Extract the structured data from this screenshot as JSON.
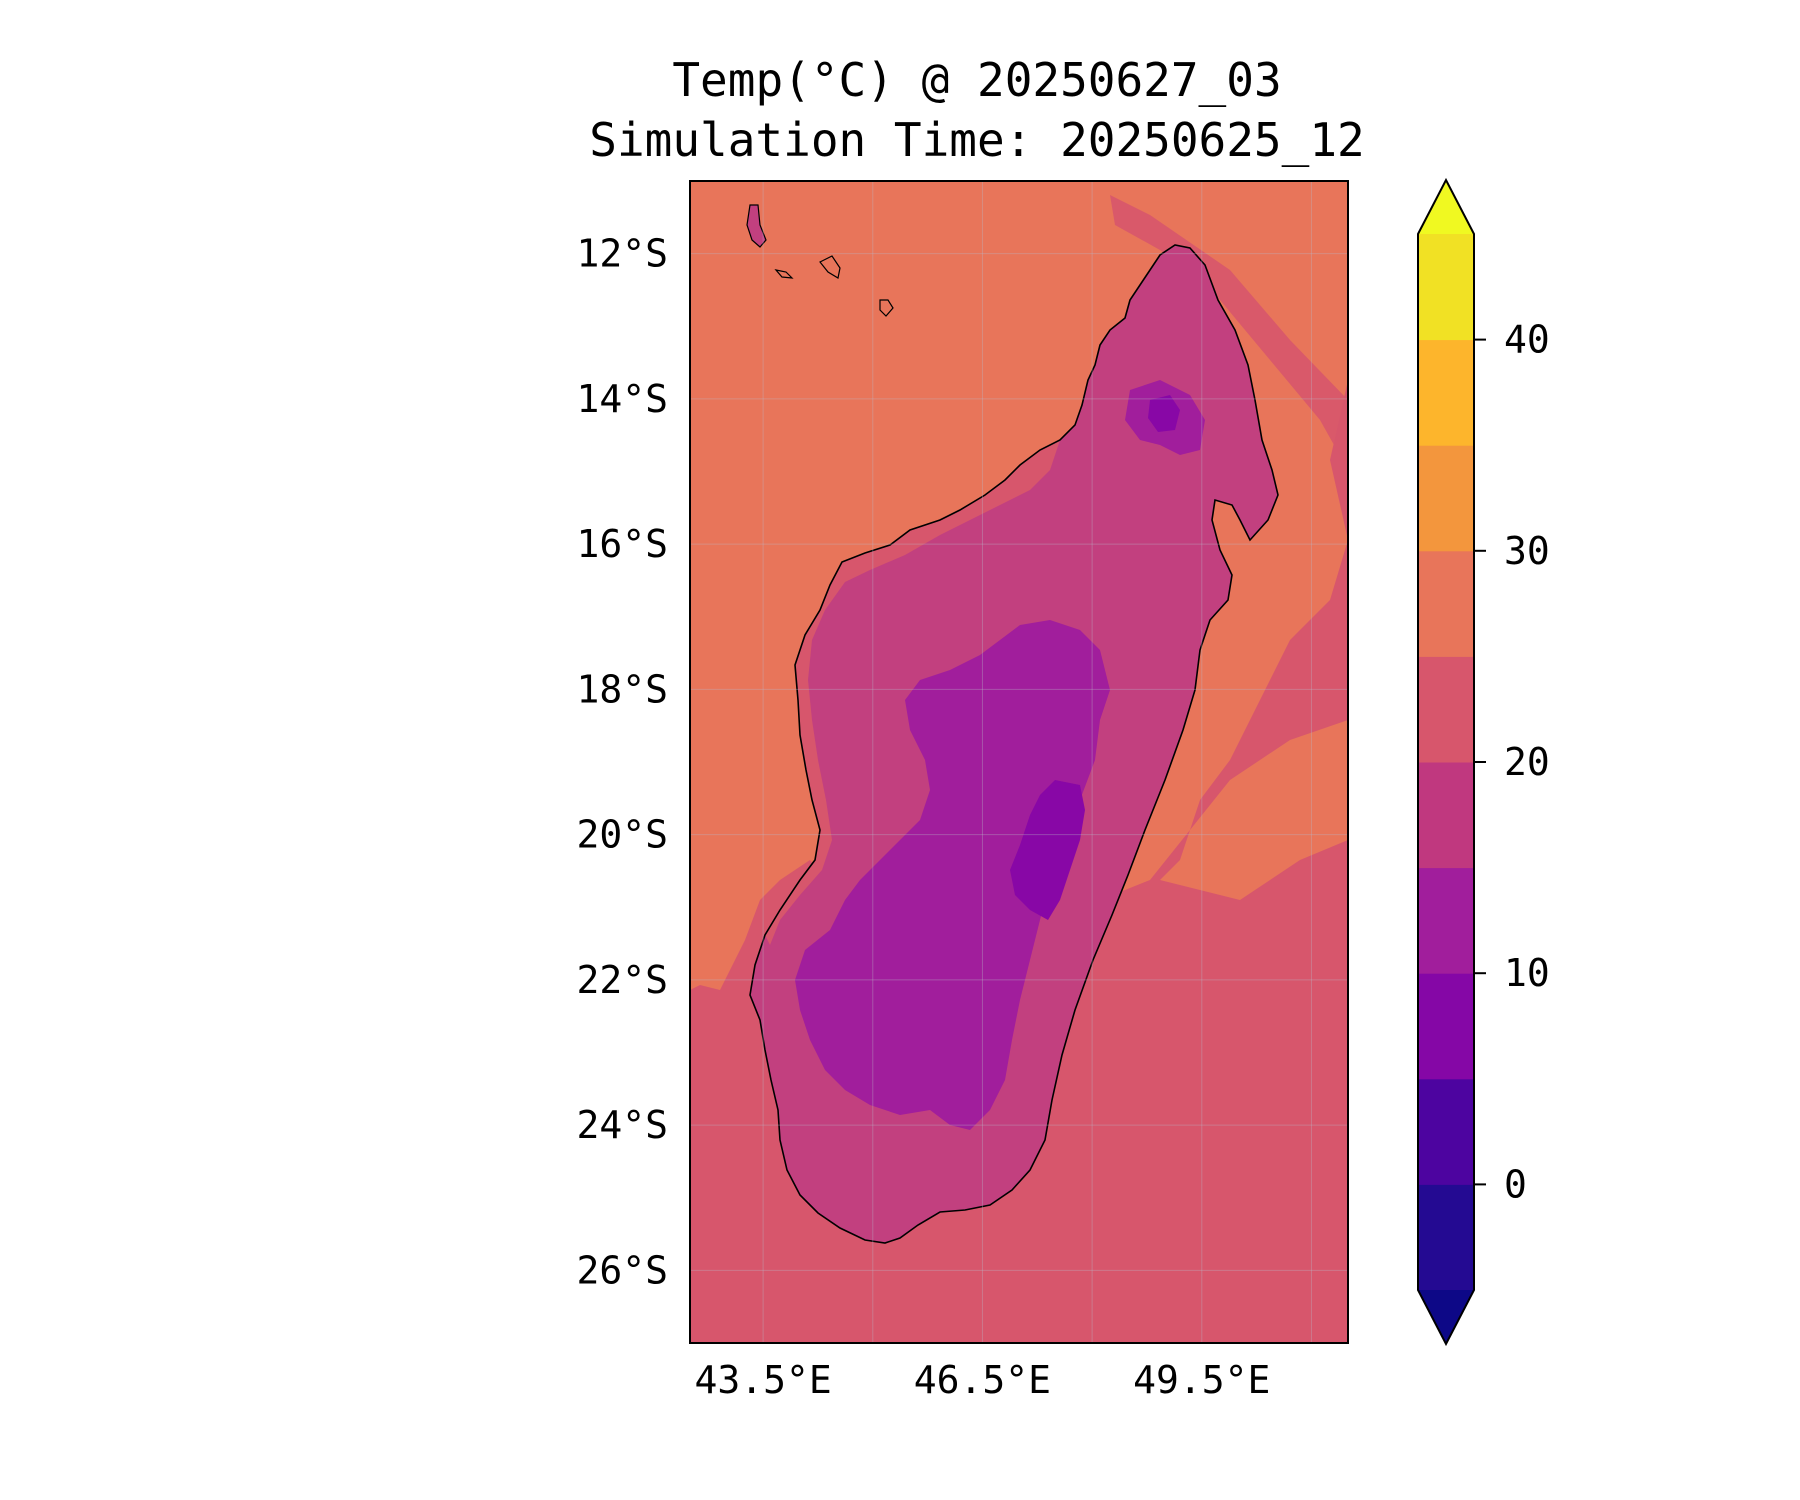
{
  "title": {
    "line1": "Temp(°C) @ 20250627_03",
    "line2": "Simulation Time: 20250625_12"
  },
  "map": {
    "lon_range": [
      42.5,
      51.5
    ],
    "lat_range": [
      -27,
      -11
    ],
    "lat_ticks": [
      {
        "value": -12,
        "label": "12°S"
      },
      {
        "value": -14,
        "label": "14°S"
      },
      {
        "value": -16,
        "label": "16°S"
      },
      {
        "value": -18,
        "label": "18°S"
      },
      {
        "value": -20,
        "label": "20°S"
      },
      {
        "value": -22,
        "label": "22°S"
      },
      {
        "value": -24,
        "label": "24°S"
      },
      {
        "value": -26,
        "label": "26°S"
      }
    ],
    "lon_ticks": [
      {
        "value": 43.5,
        "label": "43.5°E"
      },
      {
        "value": 46.5,
        "label": "46.5°E"
      },
      {
        "value": 49.5,
        "label": "49.5°E"
      }
    ],
    "extra_gridlines_lon": [
      45.0,
      48.0,
      51.0
    ],
    "grid": true,
    "colors": {
      "ocean_north": "#e8755a",
      "ocean_south": "#d7566c",
      "land_20_25": "#d7566c",
      "land_15_20": "#c2407f",
      "land_10_15": "#a11e9c",
      "land_5_10": "#8807a6",
      "coastline": "#000000"
    }
  },
  "colorbar": {
    "levels": [
      -5,
      0,
      5,
      10,
      15,
      20,
      25,
      30,
      35,
      40,
      45
    ],
    "colors": [
      "#240a92",
      "#4d04a0",
      "#8507a6",
      "#a11e9c",
      "#c0387f",
      "#d7566c",
      "#e8755a",
      "#f3963d",
      "#fdb52c",
      "#f1e124"
    ],
    "under_color": "#0d0887",
    "over_color": "#f0f921",
    "ticks": [
      {
        "value": 0,
        "label": "0"
      },
      {
        "value": 10,
        "label": "10"
      },
      {
        "value": 20,
        "label": "20"
      },
      {
        "value": 30,
        "label": "30"
      },
      {
        "value": 40,
        "label": "40"
      }
    ]
  }
}
